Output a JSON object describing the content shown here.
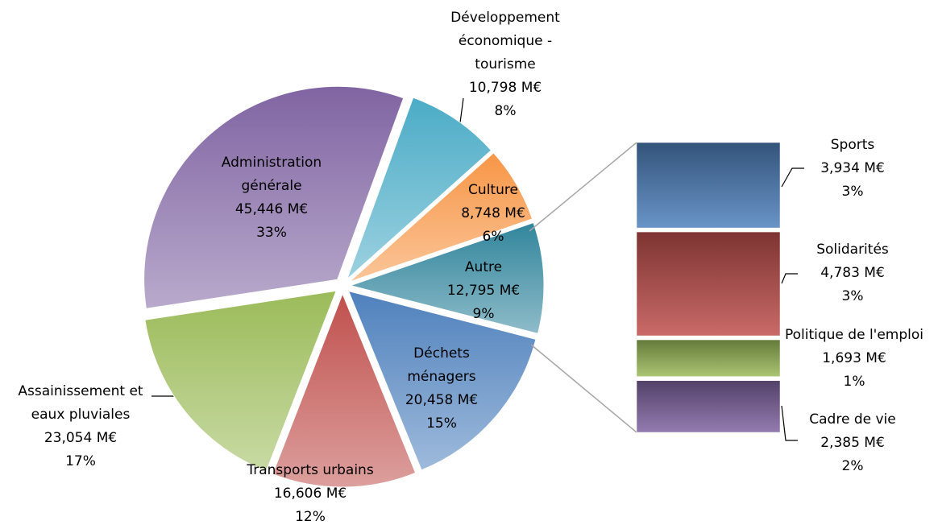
{
  "chart_data": {
    "type": "pie",
    "categories": [
      "Développement économique - tourisme",
      "Culture",
      "Autre",
      "Déchets ménagers",
      "Transports urbains",
      "Assainissement et eaux pluviales",
      "Administration générale"
    ],
    "values": [
      10.798,
      8.748,
      12.795,
      20.458,
      16.606,
      23.054,
      45.446
    ],
    "value_labels": [
      "10,798 M€",
      "8,748 M€",
      "12,795 M€",
      "20,458 M€",
      "16,606 M€",
      "23,054 M€",
      "45,446 M€"
    ],
    "percent_labels": [
      "8%",
      "6%",
      "9%",
      "15%",
      "12%",
      "17%",
      "33%"
    ],
    "colors": [
      "#4bacc6",
      "#f79646",
      "#31859c",
      "#4f81bd",
      "#c0504d",
      "#9bbb59",
      "#8064a2"
    ],
    "breakdown": {
      "type": "bar",
      "categories": [
        "Sports",
        "Solidarités",
        "Politique de l'emploi",
        "Cadre de vie"
      ],
      "values": [
        3.934,
        4.783,
        1.693,
        2.385
      ],
      "value_labels": [
        "3,934 M€",
        "4,783 M€",
        "1,693 M€",
        "2,385 M€"
      ],
      "percent_labels": [
        "3%",
        "3%",
        "1%",
        "2%"
      ],
      "colors": [
        "#4f81bd",
        "#c0504d",
        "#9bbb59",
        "#8064a2"
      ]
    }
  }
}
